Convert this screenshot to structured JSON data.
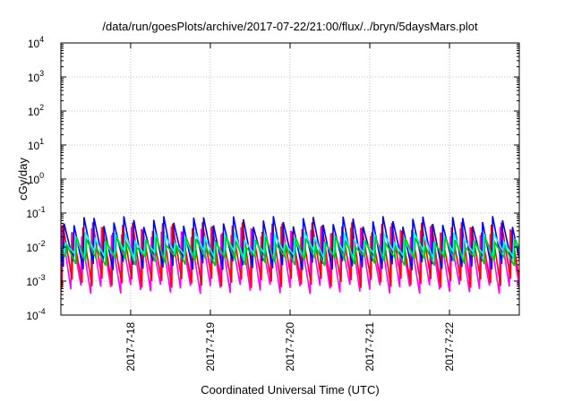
{
  "chart_data": {
    "type": "line",
    "title": "/data/run/goesPlots/archive/2017-07-22/21:00/flux/../bryn/5daysMars.plot",
    "xlabel": "Coordinated Universal Time (UTC)",
    "ylabel": "cGy/day",
    "yscale": "log",
    "ylim": [
      0.0001,
      10000
    ],
    "xlim": [
      "2017-07-17T03:00",
      "2017-07-22T21:00"
    ],
    "grid": true,
    "x_ticks": [
      "2017-7-18",
      "2017-7-19",
      "2017-7-20",
      "2017-7-21",
      "2017-7-22"
    ],
    "y_ticks": [
      {
        "base": "10",
        "exp": "-4"
      },
      {
        "base": "10",
        "exp": "-3"
      },
      {
        "base": "10",
        "exp": "-2"
      },
      {
        "base": "10",
        "exp": "-1"
      },
      {
        "base": "10",
        "exp": "0"
      },
      {
        "base": "10",
        "exp": "1"
      },
      {
        "base": "10",
        "exp": "2"
      },
      {
        "base": "10",
        "exp": "3"
      },
      {
        "base": "10",
        "exp": "4"
      }
    ],
    "sawtooth_period_hours": 3,
    "series": [
      {
        "color": "#ff00ff",
        "peak": 0.03,
        "trough": 0.0006
      },
      {
        "color": "#ff0000",
        "peak": 0.04,
        "trough": 0.0009
      },
      {
        "color": "#0000ff",
        "peak": 0.06,
        "trough": 0.003
      },
      {
        "color": "#00ffff",
        "peak": 0.02,
        "trough": 0.006
      },
      {
        "color": "#00cc00",
        "peak": 0.015,
        "trough": 0.004
      }
    ]
  }
}
